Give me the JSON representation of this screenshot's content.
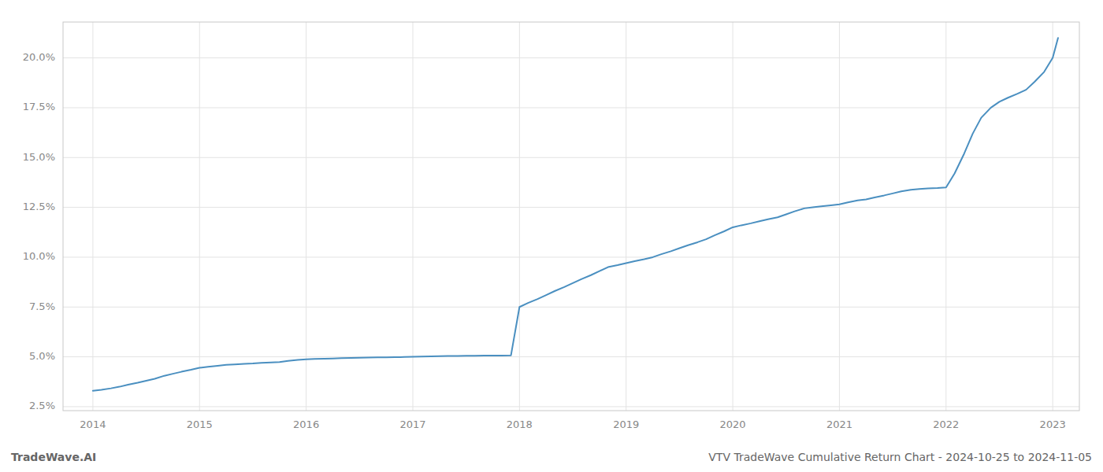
{
  "chart_data": {
    "type": "line",
    "title": "VTV TradeWave Cumulative Return Chart - 2024-10-25 to 2024-11-05",
    "annotations": [
      {
        "text": "TradeWave.AI"
      }
    ],
    "color": "#4a8fc0",
    "grid": true,
    "x": [
      2014.0,
      2014.08,
      2014.17,
      2014.25,
      2014.33,
      2014.42,
      2014.5,
      2014.58,
      2014.67,
      2014.75,
      2014.83,
      2014.92,
      2015.0,
      2015.08,
      2015.17,
      2015.25,
      2015.33,
      2015.42,
      2015.5,
      2015.58,
      2015.67,
      2015.75,
      2015.83,
      2015.92,
      2016.0,
      2016.08,
      2016.17,
      2016.25,
      2016.33,
      2016.42,
      2016.5,
      2016.58,
      2016.67,
      2016.75,
      2016.83,
      2016.92,
      2017.0,
      2017.08,
      2017.17,
      2017.25,
      2017.33,
      2017.42,
      2017.5,
      2017.58,
      2017.67,
      2017.75,
      2017.83,
      2017.92,
      2018.0,
      2018.08,
      2018.17,
      2018.25,
      2018.33,
      2018.42,
      2018.5,
      2018.58,
      2018.67,
      2018.75,
      2018.83,
      2018.92,
      2019.0,
      2019.08,
      2019.17,
      2019.25,
      2019.33,
      2019.42,
      2019.5,
      2019.58,
      2019.67,
      2019.75,
      2019.83,
      2019.92,
      2020.0,
      2020.08,
      2020.17,
      2020.25,
      2020.33,
      2020.42,
      2020.5,
      2020.58,
      2020.67,
      2020.75,
      2020.83,
      2020.92,
      2021.0,
      2021.08,
      2021.17,
      2021.25,
      2021.33,
      2021.42,
      2021.5,
      2021.58,
      2021.67,
      2021.75,
      2021.83,
      2021.92,
      2022.0,
      2022.08,
      2022.17,
      2022.25,
      2022.33,
      2022.42,
      2022.5,
      2022.58,
      2022.67,
      2022.75,
      2022.83,
      2022.92,
      2023.0,
      2023.05
    ],
    "values": [
      3.3,
      3.35,
      3.42,
      3.5,
      3.6,
      3.7,
      3.8,
      3.9,
      4.05,
      4.15,
      4.25,
      4.35,
      4.45,
      4.5,
      4.55,
      4.6,
      4.62,
      4.65,
      4.67,
      4.7,
      4.72,
      4.74,
      4.8,
      4.85,
      4.88,
      4.9,
      4.91,
      4.92,
      4.93,
      4.94,
      4.95,
      4.96,
      4.97,
      4.97,
      4.98,
      4.99,
      5.0,
      5.01,
      5.02,
      5.03,
      5.04,
      5.04,
      5.05,
      5.05,
      5.06,
      5.06,
      5.06,
      5.07,
      7.5,
      7.7,
      7.9,
      8.1,
      8.3,
      8.5,
      8.7,
      8.9,
      9.1,
      9.3,
      9.5,
      9.6,
      9.7,
      9.8,
      9.9,
      10.0,
      10.15,
      10.3,
      10.45,
      10.6,
      10.75,
      10.9,
      11.1,
      11.3,
      11.5,
      11.6,
      11.7,
      11.8,
      11.9,
      12.0,
      12.15,
      12.3,
      12.45,
      12.5,
      12.55,
      12.6,
      12.65,
      12.75,
      12.85,
      12.9,
      13.0,
      13.1,
      13.2,
      13.3,
      13.38,
      13.42,
      13.45,
      13.47,
      13.5,
      14.2,
      15.2,
      16.2,
      17.0,
      17.5,
      17.8,
      18.0,
      18.2,
      18.4,
      18.8,
      19.3,
      20.0,
      21.0
    ],
    "xlim": [
      2013.72,
      2023.25
    ],
    "ylim": [
      2.3,
      21.8
    ],
    "xticks": [
      2014,
      2015,
      2016,
      2017,
      2018,
      2019,
      2020,
      2021,
      2022,
      2023
    ],
    "yticks": [
      {
        "value": 2.5,
        "label": "2.5%"
      },
      {
        "value": 5.0,
        "label": "5.0%"
      },
      {
        "value": 7.5,
        "label": "7.5%"
      },
      {
        "value": 10.0,
        "label": "10.0%"
      },
      {
        "value": 12.5,
        "label": "12.5%"
      },
      {
        "value": 15.0,
        "label": "15.0%"
      },
      {
        "value": 17.5,
        "label": "17.5%"
      },
      {
        "value": 20.0,
        "label": "20.0%"
      }
    ]
  }
}
